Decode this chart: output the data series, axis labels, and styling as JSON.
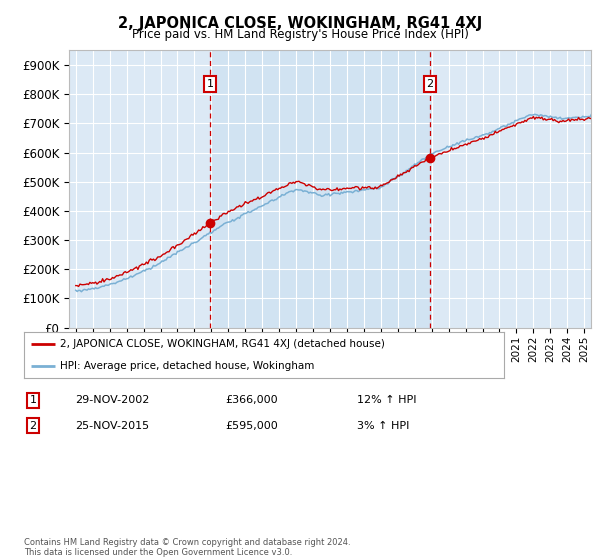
{
  "title": "2, JAPONICA CLOSE, WOKINGHAM, RG41 4XJ",
  "subtitle": "Price paid vs. HM Land Registry's House Price Index (HPI)",
  "background_color": "#ffffff",
  "plot_bg_color": "#dce9f5",
  "grid_color": "#ffffff",
  "ylim": [
    0,
    950000
  ],
  "yticks": [
    0,
    100000,
    200000,
    300000,
    400000,
    500000,
    600000,
    700000,
    800000,
    900000
  ],
  "ytick_labels": [
    "£0",
    "£100K",
    "£200K",
    "£300K",
    "£400K",
    "£500K",
    "£600K",
    "£700K",
    "£800K",
    "£900K"
  ],
  "hpi_color": "#7ab0d4",
  "price_color": "#cc0000",
  "marker1_x": 2002.91,
  "marker1_y": 366000,
  "marker1_label": "1",
  "marker2_x": 2015.9,
  "marker2_y": 595000,
  "marker2_label": "2",
  "legend_label_price": "2, JAPONICA CLOSE, WOKINGHAM, RG41 4XJ (detached house)",
  "legend_label_hpi": "HPI: Average price, detached house, Wokingham",
  "note1_num": "1",
  "note1_date": "29-NOV-2002",
  "note1_price": "£366,000",
  "note1_hpi": "12% ↑ HPI",
  "note2_num": "2",
  "note2_date": "25-NOV-2015",
  "note2_price": "£595,000",
  "note2_hpi": "3% ↑ HPI",
  "footnote": "Contains HM Land Registry data © Crown copyright and database right 2024.\nThis data is licensed under the Open Government Licence v3.0.",
  "xtick_start": 1995,
  "xtick_end": 2025
}
